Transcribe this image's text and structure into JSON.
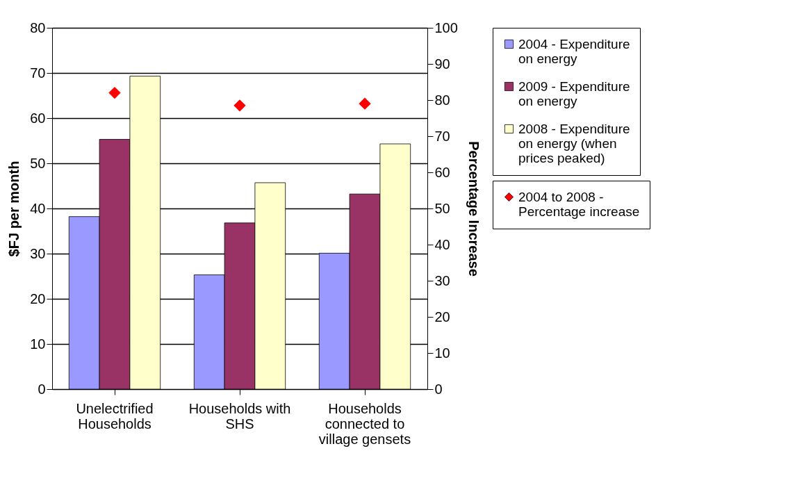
{
  "chart_data": {
    "type": "bar",
    "categories": [
      "Unelectrified Households",
      "Households with SHS",
      "Households connected to village gensets"
    ],
    "series": [
      {
        "name": "2004 - Expenditure on energy",
        "color": "#9999ff",
        "values": [
          38.2,
          25.3,
          30.1
        ]
      },
      {
        "name": "2009 - Expenditure on energy",
        "color": "#993366",
        "values": [
          55.3,
          36.8,
          43.2
        ]
      },
      {
        "name": "2008 - Expenditure on energy (when prices peaked)",
        "color": "#ffffcc",
        "values": [
          69.3,
          45.7,
          54.3
        ]
      },
      {
        "name": "2004 to 2008 - Percentage increase",
        "type": "scatter",
        "axis": "y2",
        "color": "#ff0000",
        "values": [
          82,
          78.5,
          79
        ]
      }
    ],
    "ylabel": "$FJ per month",
    "y2label": "Percentage Increase",
    "ylim": [
      0,
      80
    ],
    "yticks": [
      0,
      10,
      20,
      30,
      40,
      50,
      60,
      70,
      80
    ],
    "y2lim": [
      0,
      100
    ],
    "y2ticks": [
      0,
      10,
      20,
      30,
      40,
      50,
      60,
      70,
      80,
      90,
      100
    ],
    "grid": "y",
    "legend": "right",
    "marker": "diamond"
  }
}
